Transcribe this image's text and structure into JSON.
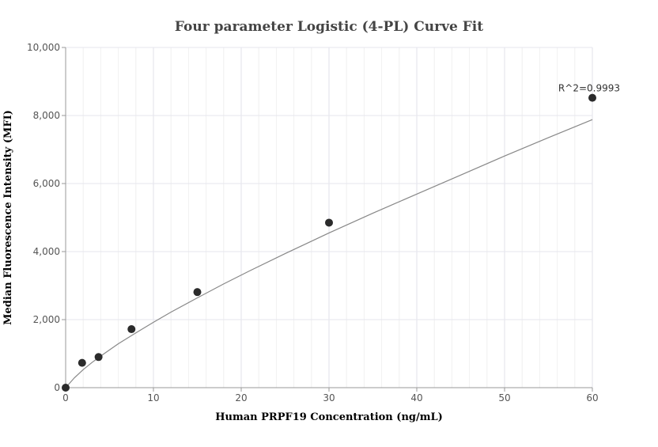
{
  "chart_data": {
    "type": "scatter",
    "title": "Four parameter Logistic (4-PL) Curve Fit",
    "xlabel": "Human PRPF19 Concentration (ng/mL)",
    "ylabel": "Median Fluorescence Intensity (MFI)",
    "xlim": [
      0,
      60
    ],
    "ylim": [
      0,
      10000
    ],
    "x_ticks": [
      0,
      10,
      20,
      30,
      40,
      50,
      60
    ],
    "y_ticks": [
      0,
      2000,
      4000,
      6000,
      8000,
      10000
    ],
    "x_tick_labels": [
      "0",
      "10",
      "20",
      "30",
      "40",
      "50",
      "60"
    ],
    "y_tick_labels": [
      "0",
      "2,000",
      "4,000",
      "6,000",
      "8,000",
      "10,000"
    ],
    "grid": true,
    "series": [
      {
        "points": [
          {
            "x": 0,
            "y": 0
          },
          {
            "x": 1.875,
            "y": 730
          },
          {
            "x": 3.75,
            "y": 900
          },
          {
            "x": 7.5,
            "y": 1720
          },
          {
            "x": 15,
            "y": 2810
          },
          {
            "x": 30,
            "y": 4850
          },
          {
            "x": 60,
            "y": 8520
          }
        ],
        "color": "#2b2b2b"
      }
    ],
    "fit_curve": {
      "x": [
        0,
        1,
        2,
        3,
        4,
        5,
        6,
        8,
        10,
        12,
        15,
        18,
        21,
        25,
        30,
        35,
        40,
        45,
        50,
        55,
        60
      ],
      "y": [
        0,
        290,
        530,
        740,
        930,
        1110,
        1290,
        1610,
        1920,
        2220,
        2640,
        3050,
        3440,
        3940,
        4550,
        5130,
        5690,
        6250,
        6810,
        7350,
        7880
      ],
      "color": "#888888"
    },
    "annotations": [
      {
        "text": "R^2=0.9993",
        "x": 60,
        "y": 8520
      }
    ]
  }
}
